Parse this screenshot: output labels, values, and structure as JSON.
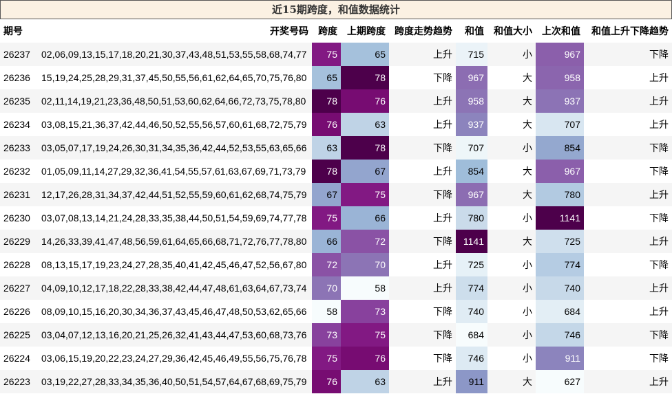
{
  "chart_data": {
    "type": "table",
    "title": "近15期跨度，和值数据统计",
    "columns": [
      "期号",
      "开奖号码",
      "跨度",
      "上期跨度",
      "跨度走势趋势",
      "和值",
      "和值大小",
      "上次和值",
      "和值上升下降趋势"
    ],
    "heatmap_colormap": "BuPu",
    "heatmap_columns": {
      "跨度": {
        "min": 58,
        "max": 78
      },
      "上期跨度": {
        "min": 58,
        "max": 78
      },
      "和值": {
        "min": 684,
        "max": 1141
      },
      "上次和值": {
        "min": 627,
        "max": 1141
      }
    },
    "rows": [
      [
        "26237",
        "02,06,09,13,15,17,18,20,21,30,37,43,48,51,53,55,58,68,74,77",
        "75",
        "65",
        "上升",
        "715",
        "小",
        "967",
        "下降"
      ],
      [
        "26236",
        "15,19,24,25,28,29,31,37,45,50,55,56,61,62,64,65,70,75,76,80",
        "65",
        "78",
        "下降",
        "967",
        "大",
        "958",
        "上升"
      ],
      [
        "26235",
        "02,11,14,19,21,23,36,48,50,51,53,60,62,64,66,72,73,75,78,80",
        "78",
        "76",
        "上升",
        "958",
        "大",
        "937",
        "上升"
      ],
      [
        "26234",
        "03,08,15,21,36,37,42,44,46,50,52,55,56,57,60,61,68,72,75,79",
        "76",
        "63",
        "上升",
        "937",
        "大",
        "707",
        "上升"
      ],
      [
        "26233",
        "03,05,07,17,19,24,26,30,31,34,35,36,42,44,52,53,55,63,65,66",
        "63",
        "78",
        "下降",
        "707",
        "小",
        "854",
        "下降"
      ],
      [
        "26232",
        "01,05,09,11,14,27,29,32,36,41,54,55,57,61,63,67,69,71,73,79",
        "78",
        "67",
        "上升",
        "854",
        "大",
        "967",
        "下降"
      ],
      [
        "26231",
        "12,17,26,28,31,34,37,42,44,51,52,55,59,60,61,62,68,74,75,79",
        "67",
        "75",
        "下降",
        "967",
        "大",
        "780",
        "上升"
      ],
      [
        "26230",
        "03,07,08,13,14,21,24,28,33,35,38,44,50,51,54,59,69,74,77,78",
        "75",
        "66",
        "上升",
        "780",
        "小",
        "1141",
        "下降"
      ],
      [
        "26229",
        "14,26,33,39,41,47,48,56,59,61,64,65,66,68,71,72,76,77,78,80",
        "66",
        "72",
        "下降",
        "1141",
        "大",
        "725",
        "上升"
      ],
      [
        "26228",
        "08,13,15,17,19,23,24,27,28,35,40,41,42,45,46,47,52,56,67,80",
        "72",
        "70",
        "上升",
        "725",
        "小",
        "774",
        "下降"
      ],
      [
        "26227",
        "04,09,10,12,17,18,22,28,33,38,42,44,47,48,61,63,64,67,73,74",
        "70",
        "58",
        "上升",
        "774",
        "小",
        "740",
        "上升"
      ],
      [
        "26226",
        "08,09,10,15,16,20,30,34,36,37,43,45,46,47,48,50,53,62,65,66",
        "58",
        "73",
        "下降",
        "740",
        "小",
        "684",
        "上升"
      ],
      [
        "26225",
        "03,04,07,12,13,16,20,21,25,26,32,41,43,44,47,53,60,68,73,76",
        "73",
        "75",
        "下降",
        "684",
        "小",
        "746",
        "下降"
      ],
      [
        "26224",
        "03,06,15,19,20,22,23,24,27,29,36,42,45,46,49,55,56,75,76,78",
        "75",
        "76",
        "下降",
        "746",
        "小",
        "911",
        "下降"
      ],
      [
        "26223",
        "03,19,22,27,28,33,34,35,36,40,50,51,54,57,64,67,68,69,75,79",
        "76",
        "63",
        "上升",
        "911",
        "大",
        "627",
        "上升"
      ]
    ]
  }
}
